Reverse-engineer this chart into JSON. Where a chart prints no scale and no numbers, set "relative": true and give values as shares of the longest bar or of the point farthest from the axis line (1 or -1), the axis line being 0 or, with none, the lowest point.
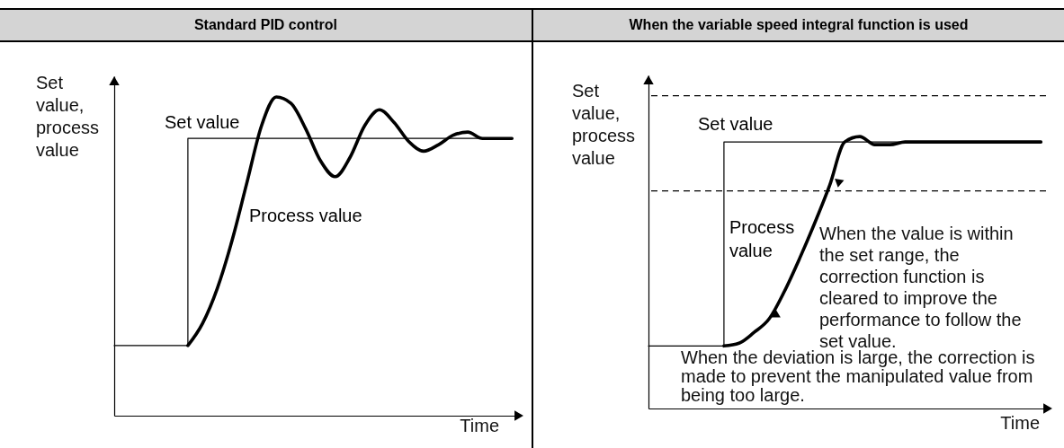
{
  "chart_data": [
    {
      "type": "line",
      "title": "Standard PID control",
      "xlabel": "Time",
      "ylabel": "Set value, process value",
      "relative": true,
      "categories": [
        null,
        null,
        null,
        null,
        null,
        null,
        null,
        null,
        null,
        null,
        null,
        null,
        null,
        null,
        null,
        null,
        null,
        null,
        null,
        null,
        null,
        null,
        null,
        null,
        null,
        null,
        null,
        null
      ],
      "series": [
        {
          "name": "Set value",
          "type": "step",
          "color": "#000000",
          "values": [
            0.22,
            0.22,
            0.22,
            0.22,
            0.22,
            0.87,
            0.87,
            0.87,
            0.87,
            0.87,
            0.87,
            0.87,
            0.87,
            0.87,
            0.87,
            0.87,
            0.87,
            0.87,
            0.87,
            0.87,
            0.87,
            0.87,
            0.87,
            0.87,
            0.87,
            0.87,
            0.87,
            0.87
          ]
        },
        {
          "name": "Process value",
          "type": "line",
          "color": "#000000",
          "values": [
            null,
            null,
            null,
            null,
            null,
            0.22,
            0.29,
            0.4,
            0.55,
            0.73,
            0.91,
            1,
            0.98,
            0.9,
            0.8,
            0.75,
            0.81,
            0.91,
            0.96,
            0.92,
            0.86,
            0.83,
            0.85,
            0.88,
            0.89,
            0.87,
            0.87,
            0.87
          ]
        }
      ]
    },
    {
      "type": "line",
      "title": "When the variable speed integral function is used",
      "xlabel": "Time",
      "ylabel": "Set value, process value",
      "relative": true,
      "categories": [
        null,
        null,
        null,
        null,
        null,
        null,
        null,
        null,
        null,
        null,
        null,
        null,
        null,
        null,
        null,
        null,
        null,
        null,
        null,
        null,
        null,
        null,
        null,
        null,
        null,
        null,
        null
      ],
      "series": [
        {
          "name": "Set value",
          "type": "step",
          "color": "#000000",
          "values": [
            0.23,
            0.23,
            0.23,
            0.23,
            0.23,
            0.98,
            0.98,
            0.98,
            0.98,
            0.98,
            0.98,
            0.98,
            0.98,
            0.98,
            0.98,
            0.98,
            0.98,
            0.98,
            0.98,
            0.98,
            0.98,
            0.98,
            0.98,
            0.98,
            0.98,
            0.98,
            0.98
          ]
        },
        {
          "name": "Process value",
          "type": "line",
          "color": "#000000",
          "values": [
            null,
            null,
            null,
            null,
            null,
            0.23,
            0.24,
            0.28,
            0.33,
            0.43,
            0.55,
            0.68,
            0.82,
            0.98,
            1,
            0.97,
            0.97,
            0.98,
            0.98,
            0.98,
            0.98,
            0.98,
            0.98,
            0.98,
            0.98,
            0.98,
            0.98
          ]
        }
      ],
      "ref_lines": [
        {
          "axis": "y",
          "value": 1.15,
          "line_style": "dashed",
          "color": "#000000"
        },
        {
          "axis": "y",
          "value": 0.8,
          "line_style": "dashed",
          "color": "#000000"
        }
      ],
      "annotations": [
        "When the value is within the set range, the correction function is cleared to improve the performance to follow the set value.",
        "When the deviation is large, the correction is made to prevent the manipulated value from being too large."
      ]
    }
  ]
}
